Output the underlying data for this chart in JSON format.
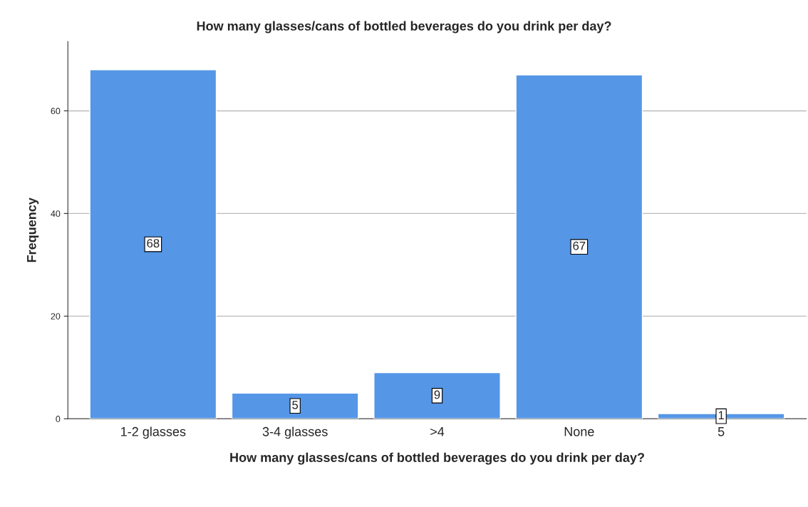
{
  "chart_data": {
    "type": "bar",
    "title": "How many glasses/cans of bottled beverages do you drink per day?",
    "xlabel": "How many glasses/cans of bottled beverages do you drink per day?",
    "ylabel": "Frequency",
    "categories": [
      "1-2 glasses",
      "3-4 glasses",
      ">4",
      "None",
      "5"
    ],
    "values": [
      68,
      5,
      9,
      67,
      1
    ],
    "color": "#5596e6",
    "ylim": [
      0,
      73.5
    ],
    "yticks": [
      0,
      20,
      40,
      60
    ],
    "grid": "y",
    "data_labels": true,
    "legend": false
  }
}
